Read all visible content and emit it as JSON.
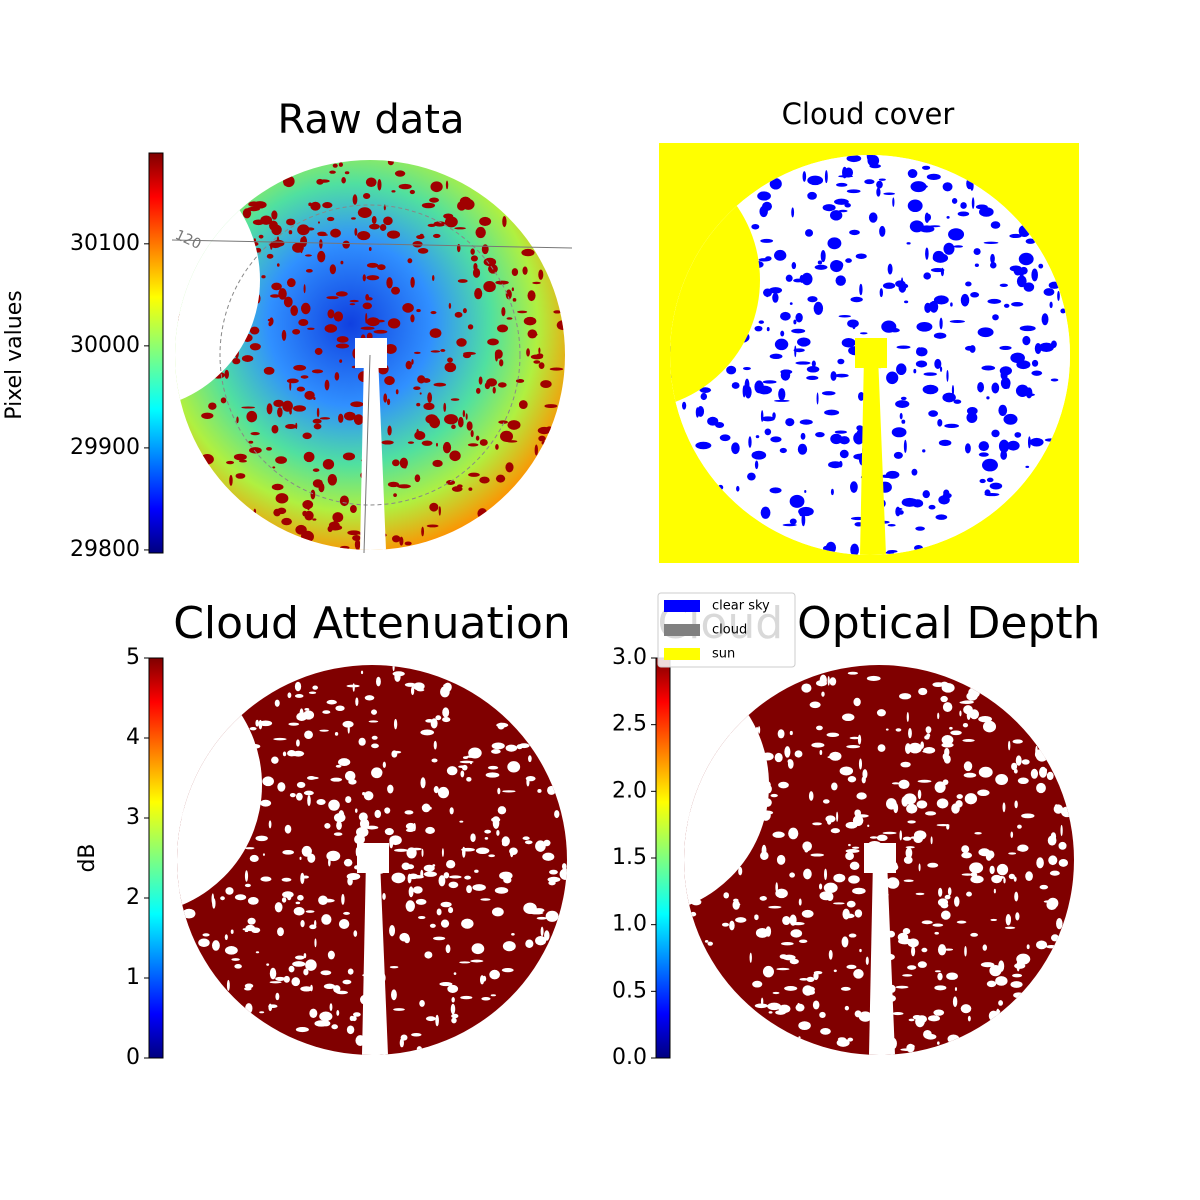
{
  "chart_data": [
    {
      "type": "image",
      "title": "Raw data",
      "ylabel": "Pixel values",
      "ylim": [
        29797,
        30189
      ],
      "yticks": [
        29800,
        29900,
        30000,
        30100
      ],
      "polar_labels": [
        "120"
      ]
    },
    {
      "type": "image",
      "title": "Cloud cover",
      "legend": [
        {
          "name": "clear sky",
          "color": "#0000ff"
        },
        {
          "name": "cloud",
          "color": "#808080"
        },
        {
          "name": "sun",
          "color": "#ffff00"
        }
      ]
    },
    {
      "type": "image",
      "title": "Cloud Attenuation",
      "ylabel": "dB",
      "ylim": [
        0,
        5
      ],
      "yticks": [
        0,
        1,
        2,
        3,
        4,
        5
      ]
    },
    {
      "type": "image",
      "title": "Cloud Optical Depth",
      "ylim": [
        0,
        3
      ],
      "yticks": [
        {
          "value": 0,
          "label": "0.0"
        },
        {
          "value": 0.5,
          "label": "0.5"
        },
        {
          "value": 1,
          "label": "1.0"
        },
        {
          "value": 1.5,
          "label": "1.5"
        },
        {
          "value": 2,
          "label": "2.0"
        },
        {
          "value": 2.5,
          "label": "2.5"
        },
        {
          "value": 3,
          "label": "3.0"
        }
      ]
    }
  ]
}
